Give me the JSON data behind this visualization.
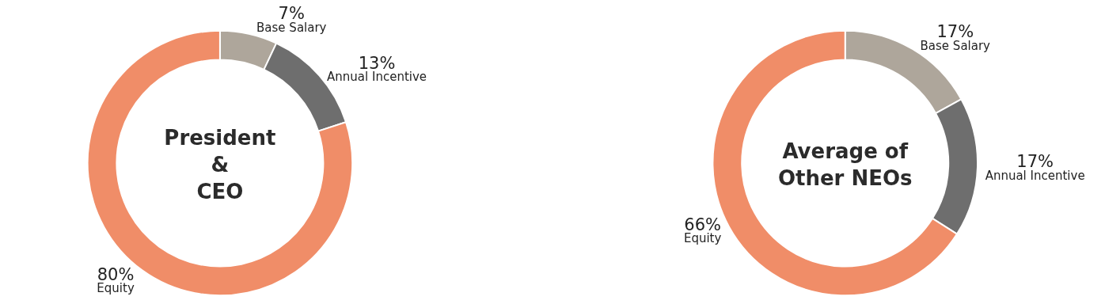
{
  "chart_data": [
    {
      "type": "donut",
      "title": "President\n&\nCEO",
      "categories": [
        "Base Salary",
        "Annual Incentive",
        "Equity"
      ],
      "values": [
        7,
        13,
        80
      ],
      "value_labels": [
        "7%",
        "13%",
        "80%"
      ],
      "colors": [
        "#aea69b",
        "#6e6e6e",
        "#f08d68"
      ]
    },
    {
      "type": "donut",
      "title": "Average of\nOther NEOs",
      "categories": [
        "Base Salary",
        "Annual Incentive",
        "Equity"
      ],
      "values": [
        17,
        17,
        66
      ],
      "value_labels": [
        "17%",
        "17%",
        "66%"
      ],
      "colors": [
        "#aea69b",
        "#6e6e6e",
        "#f08d68"
      ]
    }
  ]
}
